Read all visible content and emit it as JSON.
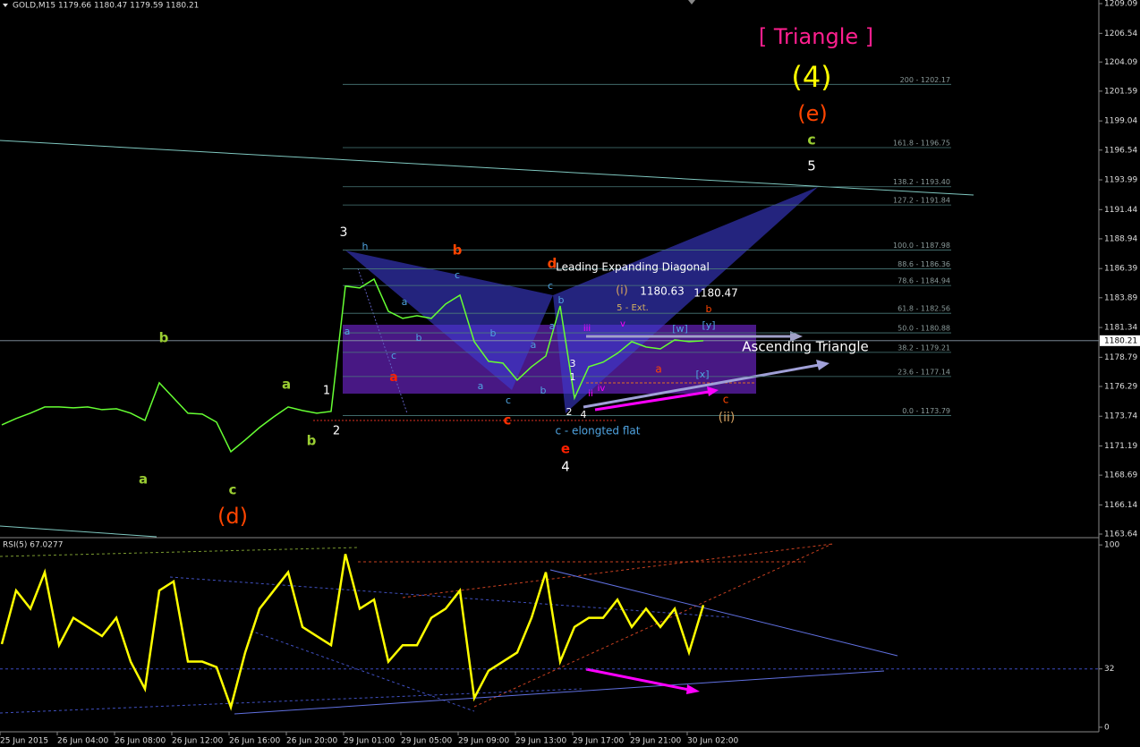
{
  "header": "GOLD,M15  1179.66 1180.47 1179.59 1180.21",
  "chart_data": [
    {
      "type": "line",
      "color": "#66ff33",
      "categories": [
        "25 Jun 2015",
        null,
        null,
        null,
        "26 Jun 04:00",
        null,
        null,
        null,
        "26 Jun 08:00",
        null,
        null,
        null,
        "26 Jun 12:00",
        null,
        null,
        null,
        "26 Jun 16:00",
        null,
        null,
        null,
        "26 Jun 20:00",
        null,
        null,
        null,
        "29 Jun 01:00",
        null,
        null,
        null,
        "29 Jun 05:00",
        null,
        null,
        null,
        "29 Jun 09:00",
        null,
        null,
        null,
        "29 Jun 13:00",
        null,
        null,
        null,
        "29 Jun 17:00",
        null,
        null,
        null,
        "29 Jun 21:00",
        null,
        null,
        null,
        "30 Jun 02:00",
        null
      ],
      "values": [
        1173.0,
        1173.54,
        1174.0,
        1174.53,
        1174.53,
        1174.46,
        1174.53,
        1174.3,
        1174.38,
        1174.0,
        1173.38,
        1176.6,
        1175.3,
        1174.0,
        1173.92,
        1173.23,
        1170.7,
        1171.7,
        1172.77,
        1173.69,
        1174.53,
        1174.23,
        1174.0,
        1174.15,
        1184.88,
        1184.73,
        1185.49,
        1182.73,
        1182.12,
        1182.35,
        1182.12,
        1183.35,
        1184.11,
        1180.13,
        1178.44,
        1178.29,
        1176.83,
        1177.98,
        1178.9,
        1183.19,
        1175.3,
        1177.98,
        1178.37,
        1179.13,
        1180.13,
        1179.67,
        1179.51,
        1180.28,
        1180.13,
        1180.21
      ],
      "ylim": [
        1163.41,
        1209.4
      ],
      "yticks": [
        1209.09,
        1206.54,
        1204.09,
        1201.59,
        1199.04,
        1196.54,
        1193.99,
        1191.44,
        1188.94,
        1186.39,
        1183.89,
        1181.34,
        1178.79,
        1176.29,
        1173.74,
        1171.19,
        1168.69,
        1166.14,
        1163.64
      ],
      "last_price": 1180.21,
      "levels": [
        {
          "value": 1202.17,
          "label": "200 - 1202.17"
        },
        {
          "value": 1196.75,
          "label": "161.8 - 1196.75"
        },
        {
          "value": 1193.4,
          "label": "138.2 - 1193.40"
        },
        {
          "value": 1191.84,
          "label": "127.2 - 1191.84"
        },
        {
          "value": 1187.98,
          "label": "100.0 - 1187.98"
        },
        {
          "value": 1186.36,
          "label": "88.6 - 1186.36"
        },
        {
          "value": 1184.94,
          "label": "78.6 - 1184.94"
        },
        {
          "value": 1182.56,
          "label": "61.8 - 1182.56"
        },
        {
          "value": 1180.88,
          "label": "50.0 - 1180.88"
        },
        {
          "value": 1179.21,
          "label": "38.2 - 1179.21"
        },
        {
          "value": 1177.14,
          "label": "23.6 - 1177.14"
        },
        {
          "value": 1173.79,
          "label": "0.0 - 1173.79"
        }
      ],
      "annotations": [
        "[ Triangle ]",
        "(4)",
        "(e)",
        "c",
        "5",
        "3",
        "h",
        "b",
        "c",
        "d",
        "Leading Expanding Diagonal",
        "(i)",
        "1180.63",
        "1180.47",
        "5 - Ext.",
        "a",
        "c",
        "b",
        "a",
        "iii",
        "v",
        "b",
        "[w]",
        "[y]",
        "a",
        "b",
        "b",
        "a",
        "Ascending Triangle",
        "c",
        "a",
        "3",
        "a",
        "[x]",
        "a",
        "1",
        "b",
        "iv",
        "c",
        "ii",
        "c",
        "2",
        "4",
        "(ii)",
        "c",
        "c - elongted flat",
        "e",
        "4",
        "1",
        "2",
        "b",
        "a",
        "b",
        "a",
        "c",
        "(d)"
      ]
    },
    {
      "type": "line",
      "title": "RSI(5) 67.0277",
      "color": "#ffff00",
      "values": [
        45.6,
        75,
        65,
        85,
        45,
        60,
        55,
        50,
        60,
        36,
        21,
        75,
        80,
        36,
        36,
        33,
        11,
        41,
        65,
        75,
        85,
        55,
        50,
        45,
        95,
        65,
        70,
        36,
        45,
        45,
        60,
        65,
        75,
        16,
        31,
        36,
        41,
        60,
        85,
        36,
        55,
        60,
        60,
        70,
        55,
        65,
        55,
        65,
        41,
        67
      ],
      "ylim": [
        -2.5,
        103
      ],
      "yticks": [
        100,
        32,
        0
      ]
    }
  ]
}
